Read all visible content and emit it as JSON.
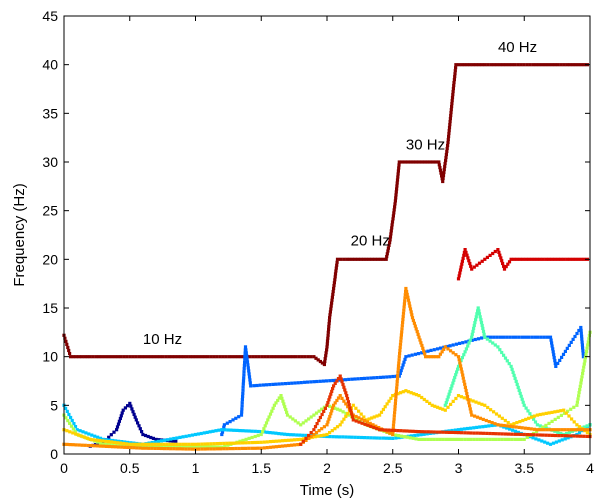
{
  "chart_data": {
    "type": "scatter",
    "title": "",
    "xlabel": "Time (s)",
    "ylabel": "Frequency (Hz)",
    "xlim": [
      0,
      4
    ],
    "ylim": [
      0,
      45
    ],
    "xticks": [
      0,
      0.5,
      1,
      1.5,
      2,
      2.5,
      3,
      3.5,
      4
    ],
    "xtick_labels": [
      "0",
      "0.5",
      "1",
      "1.5",
      "2",
      "2.5",
      "3",
      "3.5",
      "4"
    ],
    "yticks": [
      0,
      5,
      10,
      15,
      20,
      25,
      30,
      35,
      40,
      45
    ],
    "ytick_labels": [
      "0",
      "5",
      "10",
      "15",
      "20",
      "25",
      "30",
      "35",
      "40",
      "45"
    ],
    "grid": false,
    "legend": "none",
    "colormap": "jet",
    "annotations": [
      {
        "text": "10 Hz",
        "x": 0.6,
        "y": 11.3
      },
      {
        "text": "20 Hz",
        "x": 2.18,
        "y": 21.4
      },
      {
        "text": "30 Hz",
        "x": 2.6,
        "y": 31.3
      },
      {
        "text": "40 Hz",
        "x": 3.3,
        "y": 41.3
      }
    ],
    "series": [
      {
        "color": "#800000",
        "points": [
          [
            0.0,
            12.2
          ],
          [
            0.05,
            10
          ],
          [
            0.2,
            10
          ],
          [
            0.5,
            10
          ],
          [
            0.8,
            10
          ],
          [
            1.0,
            10
          ],
          [
            1.3,
            10
          ],
          [
            1.6,
            10
          ],
          [
            1.9,
            10
          ],
          [
            1.95,
            9.5
          ],
          [
            1.98,
            9.2
          ],
          [
            2.0,
            11
          ],
          [
            2.02,
            14
          ],
          [
            2.05,
            17
          ],
          [
            2.08,
            20
          ],
          [
            2.15,
            20
          ],
          [
            2.3,
            20
          ],
          [
            2.45,
            20
          ],
          [
            2.48,
            22
          ],
          [
            2.52,
            26
          ],
          [
            2.55,
            30
          ],
          [
            2.7,
            30
          ],
          [
            2.85,
            30
          ],
          [
            2.88,
            28
          ],
          [
            2.92,
            32
          ],
          [
            2.95,
            36
          ],
          [
            2.98,
            40
          ],
          [
            3.2,
            40
          ],
          [
            3.5,
            40
          ],
          [
            3.8,
            40
          ],
          [
            3.98,
            40
          ]
        ]
      },
      {
        "color": "#d40000",
        "points": [
          [
            3.0,
            18
          ],
          [
            3.05,
            21
          ],
          [
            3.1,
            19
          ],
          [
            3.2,
            20
          ],
          [
            3.3,
            21
          ],
          [
            3.35,
            19
          ],
          [
            3.4,
            20
          ],
          [
            3.6,
            20
          ],
          [
            3.8,
            20
          ],
          [
            3.98,
            20
          ]
        ]
      },
      {
        "color": "#00008f",
        "points": [
          [
            0.2,
            0.8
          ],
          [
            0.3,
            1.2
          ],
          [
            0.4,
            2.5
          ],
          [
            0.45,
            4.5
          ],
          [
            0.5,
            5.2
          ],
          [
            0.55,
            3.5
          ],
          [
            0.6,
            2
          ],
          [
            0.7,
            1.5
          ],
          [
            0.85,
            1.3
          ]
        ]
      },
      {
        "color": "#0064ff",
        "points": [
          [
            1.2,
            2
          ],
          [
            1.22,
            3
          ],
          [
            1.35,
            4
          ],
          [
            1.38,
            11
          ],
          [
            1.42,
            7
          ],
          [
            2.55,
            8
          ],
          [
            2.6,
            10
          ],
          [
            3.2,
            12
          ],
          [
            3.7,
            12
          ],
          [
            3.74,
            9
          ],
          [
            3.93,
            13
          ],
          [
            3.95,
            10
          ]
        ]
      },
      {
        "color": "#00c8ff",
        "points": [
          [
            0.0,
            5
          ],
          [
            0.1,
            2.5
          ],
          [
            0.3,
            1.5
          ],
          [
            0.6,
            1
          ],
          [
            1.0,
            2
          ],
          [
            1.2,
            2.5
          ],
          [
            1.5,
            2.3
          ],
          [
            1.7,
            2
          ],
          [
            2.0,
            1.8
          ],
          [
            2.5,
            1.6
          ],
          [
            3.0,
            2.5
          ],
          [
            3.3,
            3
          ],
          [
            3.5,
            2
          ],
          [
            3.7,
            1
          ],
          [
            3.9,
            2
          ],
          [
            4.0,
            3
          ]
        ]
      },
      {
        "color": "#50ffaf",
        "points": [
          [
            2.9,
            5
          ],
          [
            2.95,
            7
          ],
          [
            3.0,
            9
          ],
          [
            3.1,
            12
          ],
          [
            3.15,
            15
          ],
          [
            3.2,
            12
          ],
          [
            3.3,
            11
          ],
          [
            3.4,
            9
          ],
          [
            3.5,
            5
          ],
          [
            3.6,
            3
          ],
          [
            3.8,
            2
          ],
          [
            4.0,
            3
          ]
        ]
      },
      {
        "color": "#afff50",
        "points": [
          [
            0.0,
            4
          ],
          [
            0.1,
            2
          ],
          [
            0.3,
            1
          ],
          [
            0.7,
            0.8
          ],
          [
            1.0,
            0.8
          ],
          [
            1.2,
            0.7
          ],
          [
            1.5,
            2
          ],
          [
            1.6,
            5
          ],
          [
            1.65,
            6
          ],
          [
            1.7,
            4
          ],
          [
            1.8,
            3
          ],
          [
            1.9,
            4
          ],
          [
            2.0,
            5
          ],
          [
            2.1,
            4.5
          ],
          [
            2.3,
            3
          ],
          [
            2.5,
            2
          ],
          [
            2.7,
            1.5
          ],
          [
            3.0,
            1.5
          ],
          [
            3.5,
            1.5
          ],
          [
            3.9,
            5
          ],
          [
            4.0,
            12.5
          ]
        ]
      },
      {
        "color": "#ffd000",
        "points": [
          [
            0.0,
            2.5
          ],
          [
            0.2,
            1.5
          ],
          [
            0.5,
            1
          ],
          [
            1.0,
            1
          ],
          [
            1.5,
            1.2
          ],
          [
            1.8,
            1.5
          ],
          [
            2.0,
            2
          ],
          [
            2.1,
            3
          ],
          [
            2.2,
            5
          ],
          [
            2.3,
            3.5
          ],
          [
            2.4,
            4
          ],
          [
            2.5,
            6
          ],
          [
            2.6,
            6.5
          ],
          [
            2.7,
            6
          ],
          [
            2.8,
            5
          ],
          [
            2.9,
            4.5
          ],
          [
            3.0,
            6
          ],
          [
            3.2,
            5
          ],
          [
            3.4,
            3
          ],
          [
            3.6,
            4
          ],
          [
            3.8,
            4.5
          ],
          [
            3.9,
            3
          ],
          [
            4.0,
            2
          ]
        ]
      },
      {
        "color": "#ff8c00",
        "points": [
          [
            0.0,
            1
          ],
          [
            0.3,
            0.8
          ],
          [
            0.6,
            0.6
          ],
          [
            1.0,
            0.5
          ],
          [
            1.5,
            0.6
          ],
          [
            1.8,
            1
          ],
          [
            1.9,
            2
          ],
          [
            2.0,
            3
          ],
          [
            2.05,
            5
          ],
          [
            2.1,
            6
          ],
          [
            2.2,
            4
          ],
          [
            2.35,
            3
          ],
          [
            2.5,
            2
          ],
          [
            2.55,
            10
          ],
          [
            2.6,
            17
          ],
          [
            2.65,
            14
          ],
          [
            2.7,
            12
          ],
          [
            2.75,
            10
          ],
          [
            2.85,
            10
          ],
          [
            2.9,
            11
          ],
          [
            3.0,
            10
          ],
          [
            3.1,
            4
          ],
          [
            3.3,
            3
          ],
          [
            3.6,
            2.5
          ],
          [
            4.0,
            2.5
          ]
        ]
      },
      {
        "color": "#e63200",
        "points": [
          [
            1.8,
            1
          ],
          [
            1.9,
            2.5
          ],
          [
            2.0,
            5
          ],
          [
            2.05,
            7
          ],
          [
            2.1,
            8
          ],
          [
            2.15,
            6
          ],
          [
            2.2,
            3.5
          ],
          [
            2.4,
            2.5
          ],
          [
            2.7,
            2.3
          ],
          [
            3.0,
            2.2
          ],
          [
            3.5,
            2
          ],
          [
            4.0,
            1.8
          ]
        ]
      }
    ]
  }
}
